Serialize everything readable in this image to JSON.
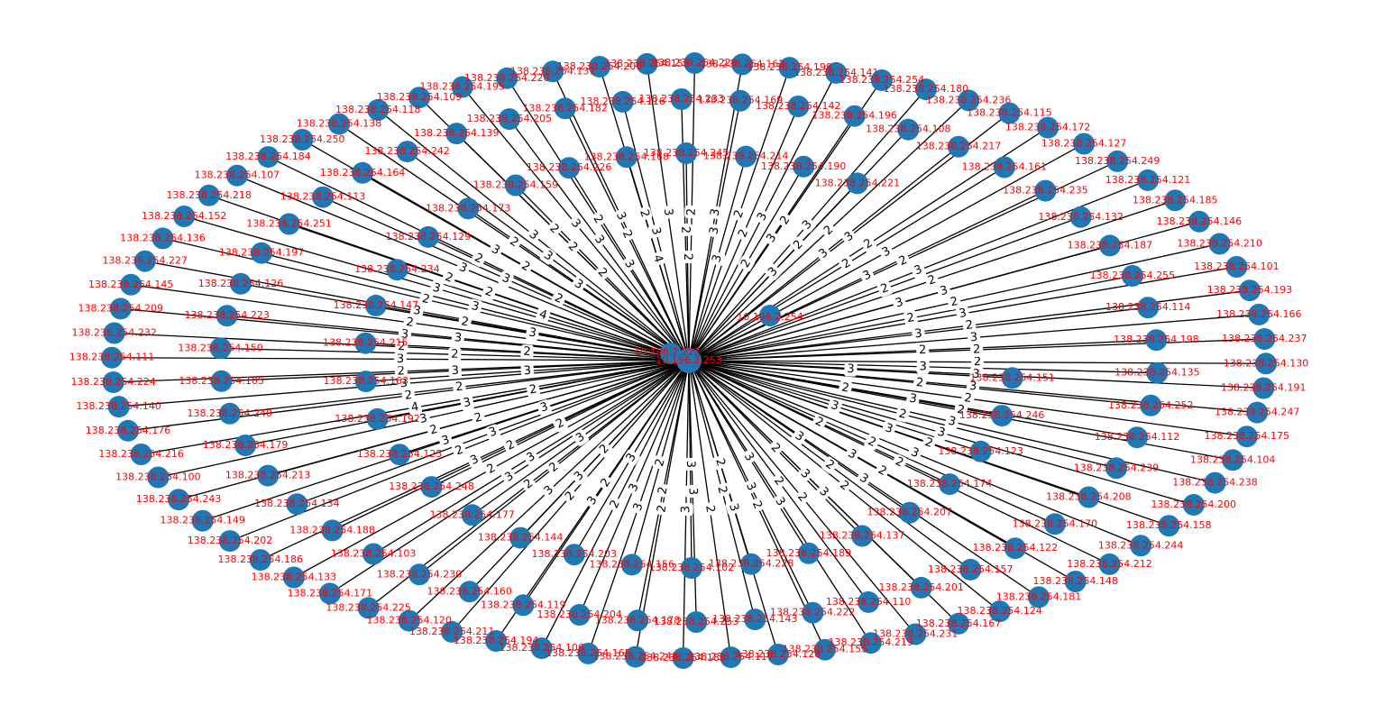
{
  "colors": {
    "node": "#1f77b4",
    "node_label": "#ff0000",
    "edge": "#000000",
    "edge_label_bg": "#ffffff",
    "background": "#ffffff"
  },
  "graph": {
    "hub": "10.196.2.222",
    "hub_center_label": "10.196.2.253",
    "extra_hub_label": "10.196.2.254",
    "prefix": "138.238.254.",
    "nodes": [
      {
        "id": "138.238.254.130",
        "w": 2
      },
      {
        "id": "138.238.254.191",
        "w": 3
      },
      {
        "id": "138.238.254.247",
        "w": 3
      },
      {
        "id": "138.238.254.175",
        "w": 2
      },
      {
        "id": "138.238.254.104",
        "w": 2
      },
      {
        "id": "138.238.254.238",
        "w": 3
      },
      {
        "id": "138.238.254.200",
        "w": 3
      },
      {
        "id": "138.238.254.158",
        "w": 2
      },
      {
        "id": "138.238.254.244",
        "w": 3
      },
      {
        "id": "138.238.254.212",
        "w": 2
      },
      {
        "id": "138.238.254.148",
        "w": 2
      },
      {
        "id": "138.238.254.181",
        "w": 3
      },
      {
        "id": "138.238.254.124",
        "w": 2
      },
      {
        "id": "138.238.254.167",
        "w": 3
      },
      {
        "id": "138.238.254.231",
        "w": 2
      },
      {
        "id": "138.238.254.219",
        "w": 3
      },
      {
        "id": "138.238.254.155",
        "w": 2
      },
      {
        "id": "138.238.254.128",
        "w": 3
      },
      {
        "id": "138.238.254.117",
        "w": 2
      },
      {
        "id": "138.238.254.183",
        "w": 3
      },
      {
        "id": "138.238.254.241",
        "w": 2
      },
      {
        "id": "138.238.254.165",
        "w": 3
      },
      {
        "id": "138.238.254.106",
        "w": 2
      },
      {
        "id": "138.238.254.194",
        "w": 3
      },
      {
        "id": "138.238.254.211",
        "w": 2
      },
      {
        "id": "138.238.254.120",
        "w": 3
      },
      {
        "id": "138.238.254.225",
        "w": 2
      },
      {
        "id": "138.238.254.171",
        "w": 3
      },
      {
        "id": "138.238.254.133",
        "w": 2
      },
      {
        "id": "138.238.254.186",
        "w": 3
      },
      {
        "id": "138.238.254.202",
        "w": 2
      },
      {
        "id": "138.238.254.149",
        "w": 3
      },
      {
        "id": "138.238.254.243",
        "w": 2
      },
      {
        "id": "138.238.254.100",
        "w": 3
      },
      {
        "id": "138.238.254.216",
        "w": 4
      },
      {
        "id": "138.238.254.176",
        "w": 2
      },
      {
        "id": "138.238.254.140",
        "w": 3
      },
      {
        "id": "138.238.254.224",
        "w": 2
      },
      {
        "id": "138.238.254.111",
        "w": 3
      },
      {
        "id": "138.238.254.232",
        "w": 2
      },
      {
        "id": "138.238.254.209",
        "w": 3
      },
      {
        "id": "138.238.254.145",
        "w": 2
      },
      {
        "id": "138.238.254.227",
        "w": 3
      },
      {
        "id": "138.238.254.136",
        "w": 2
      },
      {
        "id": "138.238.254.152",
        "w": 3
      },
      {
        "id": "138.238.254.218",
        "w": 2
      },
      {
        "id": "138.238.254.107",
        "w": 3
      },
      {
        "id": "138.238.254.184",
        "w": 2
      },
      {
        "id": "138.238.254.250",
        "w": 3
      },
      {
        "id": "138.238.254.138",
        "w": 2
      },
      {
        "id": "138.238.254.118",
        "w": 3
      },
      {
        "id": "138.238.254.109",
        "w": 2
      },
      {
        "id": "138.238.254.195",
        "w": 3
      },
      {
        "id": "138.238.254.220",
        "w": 2
      },
      {
        "id": "138.238.254.131",
        "w": 3
      },
      {
        "id": "138.238.254.206",
        "w": 2
      },
      {
        "id": "138.238.254.153",
        "w": 3
      },
      {
        "id": "138.238.254.229",
        "w": 2
      },
      {
        "id": "138.238.254.162",
        "w": 3
      },
      {
        "id": "138.238.254.199",
        "w": 2
      },
      {
        "id": "138.238.254.141",
        "w": 3
      },
      {
        "id": "138.238.254.254",
        "w": 2
      },
      {
        "id": "138.238.254.180",
        "w": 3
      },
      {
        "id": "138.238.254.236",
        "w": 2
      },
      {
        "id": "138.238.254.115",
        "w": 3
      },
      {
        "id": "138.238.254.172",
        "w": 2
      },
      {
        "id": "138.238.254.127",
        "w": 3
      },
      {
        "id": "138.238.254.249",
        "w": 2
      },
      {
        "id": "138.238.254.121",
        "w": 3
      },
      {
        "id": "138.238.254.185",
        "w": 2
      },
      {
        "id": "138.238.254.146",
        "w": 3
      },
      {
        "id": "138.238.254.210",
        "w": 2
      },
      {
        "id": "138.238.254.101",
        "w": 3
      },
      {
        "id": "138.238.254.193",
        "w": 2
      },
      {
        "id": "138.238.254.166",
        "w": 3
      },
      {
        "id": "138.238.254.237",
        "w": 2
      },
      {
        "id": "138.238.254.135",
        "w": 3
      },
      {
        "id": "138.238.254.252",
        "w": 2
      },
      {
        "id": "138.238.254.112",
        "w": 3
      },
      {
        "id": "138.238.254.239",
        "w": 2
      },
      {
        "id": "138.238.254.208",
        "w": 3
      },
      {
        "id": "138.238.254.170",
        "w": 2
      },
      {
        "id": "138.238.254.122",
        "w": 3
      },
      {
        "id": "138.238.254.157",
        "w": 2
      },
      {
        "id": "138.238.254.201",
        "w": 3
      },
      {
        "id": "138.238.254.110",
        "w": 2
      },
      {
        "id": "138.238.254.222",
        "w": 3
      },
      {
        "id": "138.238.254.143",
        "w": 2
      },
      {
        "id": "138.238.254.253",
        "w": 3
      },
      {
        "id": "138.238.254.178",
        "w": 2
      },
      {
        "id": "138.238.254.204",
        "w": 3
      },
      {
        "id": "138.238.254.119",
        "w": 2
      },
      {
        "id": "138.238.254.160",
        "w": 3
      },
      {
        "id": "138.238.254.230",
        "w": 2
      },
      {
        "id": "138.238.254.103",
        "w": 3
      },
      {
        "id": "138.238.254.188",
        "w": 2
      },
      {
        "id": "138.238.254.134",
        "w": 3
      },
      {
        "id": "138.238.254.213",
        "w": 2
      },
      {
        "id": "138.238.254.179",
        "w": 3
      },
      {
        "id": "138.238.254.240",
        "w": 2
      },
      {
        "id": "138.238.254.105",
        "w": 3
      },
      {
        "id": "138.238.254.150",
        "w": 2
      },
      {
        "id": "138.238.254.223",
        "w": 3
      },
      {
        "id": "138.238.254.126",
        "w": 2
      },
      {
        "id": "138.238.254.197",
        "w": 3
      },
      {
        "id": "138.238.254.251",
        "w": 2
      },
      {
        "id": "138.238.254.113",
        "w": 3
      },
      {
        "id": "138.238.254.164",
        "w": 2
      },
      {
        "id": "138.238.254.242",
        "w": 3
      },
      {
        "id": "138.238.254.139",
        "w": 2
      },
      {
        "id": "138.238.254.205",
        "w": 3
      },
      {
        "id": "138.238.254.182",
        "w": 2
      },
      {
        "id": "138.238.254.116",
        "w": 3
      },
      {
        "id": "138.238.254.233",
        "w": 2
      },
      {
        "id": "138.238.254.169",
        "w": 3
      },
      {
        "id": "138.238.254.142",
        "w": 2
      },
      {
        "id": "138.238.254.196",
        "w": 3
      },
      {
        "id": "138.238.254.108",
        "w": 2
      },
      {
        "id": "138.238.254.217",
        "w": 3
      },
      {
        "id": "138.238.254.161",
        "w": 2
      },
      {
        "id": "138.238.254.235",
        "w": 3
      },
      {
        "id": "138.238.254.132",
        "w": 2
      },
      {
        "id": "138.238.254.187",
        "w": 3
      },
      {
        "id": "138.238.254.255",
        "w": 2
      },
      {
        "id": "138.238.254.114",
        "w": 3
      },
      {
        "id": "138.238.254.198",
        "w": 2
      },
      {
        "id": "138.238.254.151",
        "w": 3
      },
      {
        "id": "138.238.254.246",
        "w": 2
      },
      {
        "id": "138.238.254.123",
        "w": 3
      },
      {
        "id": "138.238.254.174",
        "w": 2
      },
      {
        "id": "138.238.254.207",
        "w": 3
      },
      {
        "id": "138.238.254.137",
        "w": 2
      },
      {
        "id": "138.238.254.189",
        "w": 3
      },
      {
        "id": "138.238.254.228",
        "w": 2
      },
      {
        "id": "138.238.254.102",
        "w": 3
      },
      {
        "id": "138.238.254.156",
        "w": 2
      },
      {
        "id": "138.238.254.203",
        "w": 3
      },
      {
        "id": "138.238.254.144",
        "w": 2
      },
      {
        "id": "138.238.254.177",
        "w": 3
      },
      {
        "id": "138.238.254.248",
        "w": 2
      },
      {
        "id": "138.238.254.125",
        "w": 3
      },
      {
        "id": "138.238.254.192",
        "w": 2
      },
      {
        "id": "138.238.254.163",
        "w": 3
      },
      {
        "id": "138.238.254.215",
        "w": 2
      },
      {
        "id": "138.238.254.147",
        "w": 3
      },
      {
        "id": "138.238.254.234",
        "w": 4
      },
      {
        "id": "138.238.254.129",
        "w": 2
      },
      {
        "id": "138.238.254.173",
        "w": 3
      },
      {
        "id": "138.238.254.159",
        "w": 2
      },
      {
        "id": "138.238.254.226",
        "w": 3
      },
      {
        "id": "138.238.254.168",
        "w": 4
      },
      {
        "id": "138.238.254.245",
        "w": 2
      },
      {
        "id": "138.238.254.214",
        "w": 3
      },
      {
        "id": "138.238.254.190",
        "w": 2
      },
      {
        "id": "138.238.254.221",
        "w": 3
      }
    ]
  }
}
